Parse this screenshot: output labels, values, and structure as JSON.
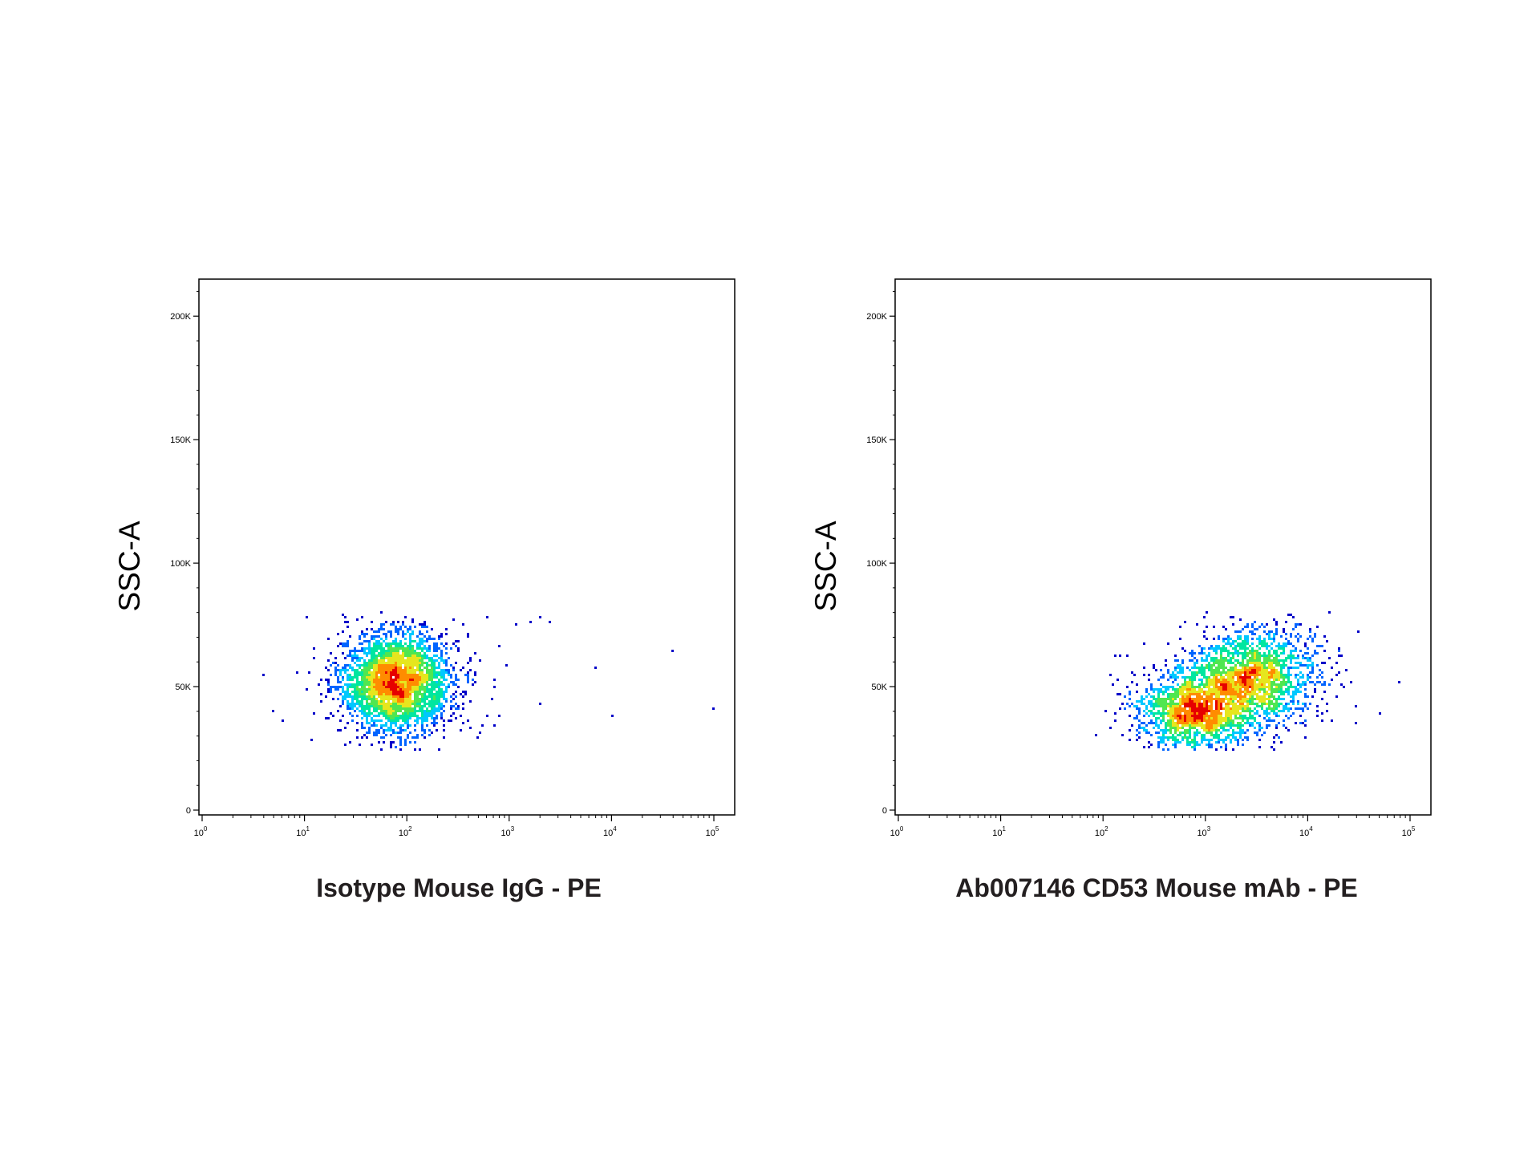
{
  "chart_data": [
    {
      "type": "scatter",
      "subtype": "flow-cytometry-density-dot-plot",
      "xlabel": "Isotype Mouse IgG - PE",
      "ylabel": "SSC-A",
      "x_scale": "log",
      "xlim": [
        1,
        100000
      ],
      "ylim": [
        0,
        215000
      ],
      "x_ticks": [
        {
          "value": 1,
          "base": "10",
          "exp": "0"
        },
        {
          "value": 10,
          "base": "10",
          "exp": "1"
        },
        {
          "value": 100,
          "base": "10",
          "exp": "2"
        },
        {
          "value": 1000,
          "base": "10",
          "exp": "3"
        },
        {
          "value": 10000,
          "base": "10",
          "exp": "4"
        },
        {
          "value": 100000,
          "base": "10",
          "exp": "5"
        }
      ],
      "y_ticks": [
        {
          "value": 0,
          "label": "0"
        },
        {
          "value": 50000,
          "label": "50K"
        },
        {
          "value": 100000,
          "label": "100K"
        },
        {
          "value": 150000,
          "label": "150K"
        },
        {
          "value": 200000,
          "label": "200K"
        }
      ],
      "grid": false,
      "legend": "none",
      "colormap": [
        "#0000c8",
        "#0064ff",
        "#00c8ff",
        "#00e6a0",
        "#50e650",
        "#e6e61e",
        "#ff8c00",
        "#e60000"
      ],
      "clusters": [
        {
          "x_center": 80,
          "x_spread_decades": 0.28,
          "y_center": 52000,
          "y_spread": 10000,
          "y_min": 24000,
          "y_max": 80000,
          "events": 3200
        }
      ],
      "points": [
        {
          "x": 4,
          "y": 55000
        },
        {
          "x": 5,
          "y": 40000
        },
        {
          "x": 6,
          "y": 36000
        },
        {
          "x": 400,
          "y": 60000
        },
        {
          "x": 600,
          "y": 78000
        },
        {
          "x": 800,
          "y": 66000
        },
        {
          "x": 1200,
          "y": 75000
        },
        {
          "x": 1600,
          "y": 76000
        },
        {
          "x": 2000,
          "y": 78000
        },
        {
          "x": 2500,
          "y": 76000
        },
        {
          "x": 700,
          "y": 50000
        },
        {
          "x": 2000,
          "y": 43000
        },
        {
          "x": 7000,
          "y": 58000
        },
        {
          "x": 10000,
          "y": 38000
        },
        {
          "x": 40000,
          "y": 64000
        },
        {
          "x": 100000,
          "y": 41000
        }
      ]
    },
    {
      "type": "scatter",
      "subtype": "flow-cytometry-density-dot-plot",
      "xlabel": "Ab007146 CD53 Mouse mAb - PE",
      "ylabel": "SSC-A",
      "x_scale": "log",
      "xlim": [
        1,
        100000
      ],
      "ylim": [
        0,
        215000
      ],
      "x_ticks": [
        {
          "value": 1,
          "base": "10",
          "exp": "0"
        },
        {
          "value": 10,
          "base": "10",
          "exp": "1"
        },
        {
          "value": 100,
          "base": "10",
          "exp": "2"
        },
        {
          "value": 1000,
          "base": "10",
          "exp": "3"
        },
        {
          "value": 10000,
          "base": "10",
          "exp": "4"
        },
        {
          "value": 100000,
          "base": "10",
          "exp": "5"
        }
      ],
      "y_ticks": [
        {
          "value": 0,
          "label": "0"
        },
        {
          "value": 50000,
          "label": "50K"
        },
        {
          "value": 100000,
          "label": "100K"
        },
        {
          "value": 150000,
          "label": "150K"
        },
        {
          "value": 200000,
          "label": "200K"
        }
      ],
      "grid": false,
      "legend": "none",
      "colormap": [
        "#0000c8",
        "#0064ff",
        "#00c8ff",
        "#00e6a0",
        "#50e650",
        "#e6e61e",
        "#ff8c00",
        "#e60000"
      ],
      "clusters": [
        {
          "x_center": 800,
          "x_spread_decades": 0.3,
          "y_center": 40000,
          "y_spread": 8000,
          "y_min": 24000,
          "y_max": 80000,
          "events": 1600
        },
        {
          "x_center": 2800,
          "x_spread_decades": 0.32,
          "y_center": 54000,
          "y_spread": 10000,
          "y_min": 24000,
          "y_max": 80000,
          "events": 1900
        }
      ],
      "points": [
        {
          "x": 120,
          "y": 55000
        },
        {
          "x": 150,
          "y": 63000
        },
        {
          "x": 180,
          "y": 48000
        },
        {
          "x": 200,
          "y": 42000
        },
        {
          "x": 250,
          "y": 67000
        },
        {
          "x": 20000,
          "y": 64000
        },
        {
          "x": 30000,
          "y": 42000
        },
        {
          "x": 50000,
          "y": 39000
        },
        {
          "x": 80000,
          "y": 52000
        }
      ]
    }
  ]
}
